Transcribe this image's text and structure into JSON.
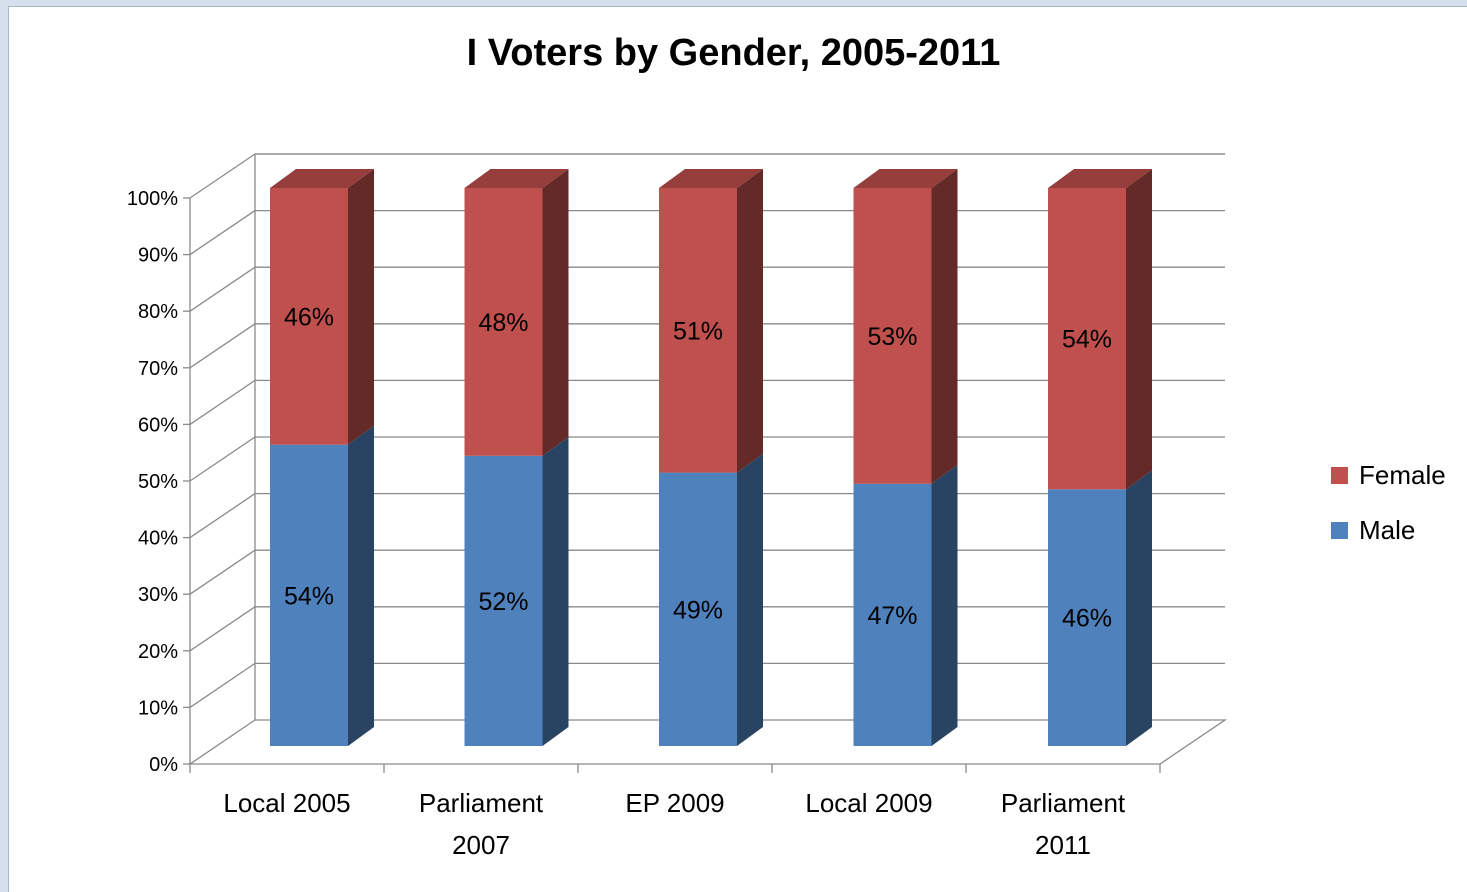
{
  "chart_data": {
    "type": "bar",
    "stacked": true,
    "style": "3d",
    "title": "I Voters by Gender, 2005-2011",
    "xlabel": "",
    "ylabel": "",
    "ylim": [
      0,
      100
    ],
    "y_ticks": [
      "0%",
      "10%",
      "20%",
      "30%",
      "40%",
      "50%",
      "60%",
      "70%",
      "80%",
      "90%",
      "100%"
    ],
    "categories": [
      [
        "Local 2005"
      ],
      [
        "Parliament",
        "2007"
      ],
      [
        "EP 2009"
      ],
      [
        "Local 2009"
      ],
      [
        "Parliament",
        "2011"
      ]
    ],
    "series": [
      {
        "name": "Male",
        "values": [
          54,
          52,
          49,
          47,
          46
        ],
        "labels": [
          "54%",
          "52%",
          "49%",
          "47%",
          "46%"
        ],
        "color": "#4f81bd"
      },
      {
        "name": "Female",
        "values": [
          46,
          48,
          51,
          53,
          54
        ],
        "labels": [
          "46%",
          "48%",
          "51%",
          "53%",
          "54%"
        ],
        "color": "#c0504d"
      }
    ],
    "legend": {
      "position": "right",
      "order": [
        "Female",
        "Male"
      ]
    },
    "grid": true
  }
}
